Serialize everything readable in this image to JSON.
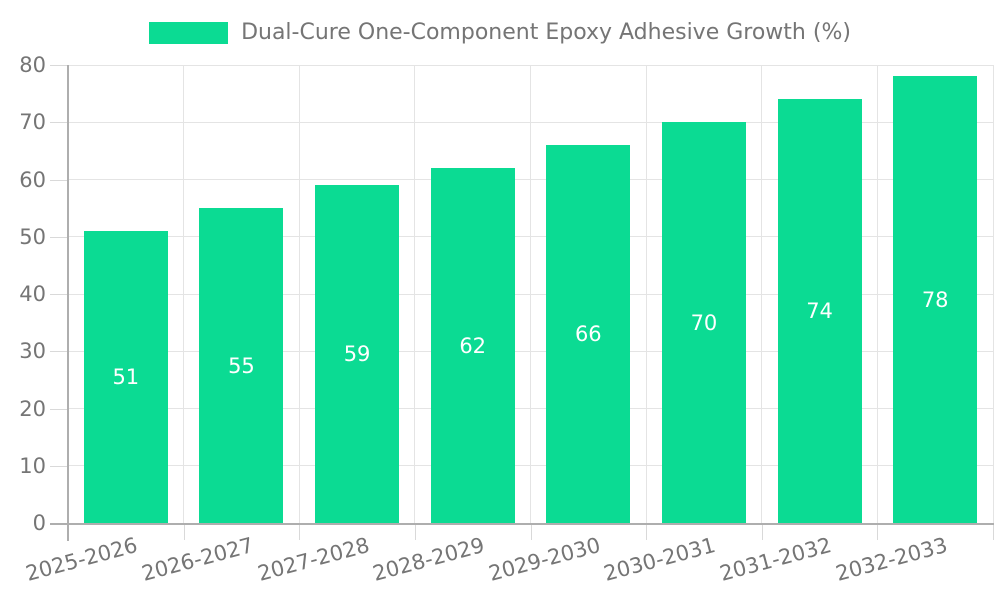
{
  "chart_data": {
    "type": "bar",
    "legend": "Dual-Cure One-Component Epoxy Adhesive Growth (%)",
    "legend_position": "top",
    "categories": [
      "2025-2026",
      "2026-2027",
      "2027-2028",
      "2028-2029",
      "2029-2030",
      "2030-2031",
      "2031-2032",
      "2032-2033"
    ],
    "values": [
      51,
      55,
      59,
      62,
      66,
      70,
      74,
      78
    ],
    "ylim": [
      0,
      80
    ],
    "yticks": [
      0,
      10,
      20,
      30,
      40,
      50,
      60,
      70,
      80
    ],
    "grid": true,
    "x_label_rotation_deg": -15,
    "colors": {
      "bar": "#0bdb93",
      "value_label": "#ffffff",
      "axis_text": "#757575",
      "gridline": "#e4e4e4",
      "axis_line": "#aeaeae",
      "tick": "#d9d9d9",
      "background": "#ffffff"
    }
  }
}
